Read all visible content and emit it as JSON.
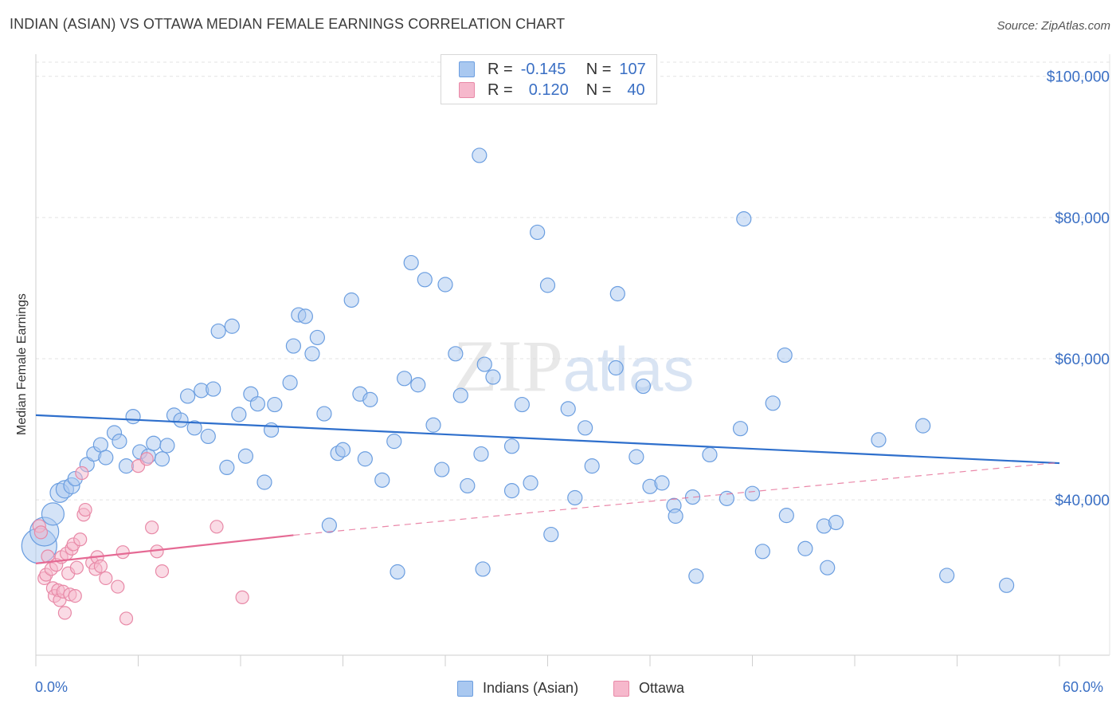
{
  "title": "INDIAN (ASIAN) VS OTTAWA MEDIAN FEMALE EARNINGS CORRELATION CHART",
  "source": "Source: ZipAtlas.com",
  "watermark": "ZIPatlas",
  "legend_top": {
    "rows": [
      {
        "r_label": "R =",
        "r_value": "-0.145",
        "n_label": "N =",
        "n_value": "107",
        "color": "#a9c8f0",
        "border": "#6b9ee0"
      },
      {
        "r_label": "R =",
        "r_value": "0.120",
        "n_label": "N =",
        "n_value": "40",
        "color": "#f6b8cc",
        "border": "#e889a7"
      }
    ]
  },
  "legend_bottom": {
    "items": [
      {
        "label": "Indians (Asian)",
        "color": "#a9c8f0",
        "border": "#6b9ee0"
      },
      {
        "label": "Ottawa",
        "color": "#f6b8cc",
        "border": "#e889a7"
      }
    ]
  },
  "chart_data": {
    "type": "scatter",
    "title": "INDIAN (ASIAN) VS OTTAWA MEDIAN FEMALE EARNINGS CORRELATION CHART",
    "xlabel": "",
    "ylabel": "Median Female Earnings",
    "xlim": [
      0,
      60
    ],
    "ylim": [
      18000,
      102000
    ],
    "x_tick_labels": [
      "0.0%",
      "60.0%"
    ],
    "y_ticks": [
      {
        "value": 40000,
        "label": "$40,000"
      },
      {
        "value": 60000,
        "label": "$60,000"
      },
      {
        "value": 80000,
        "label": "$80,000"
      },
      {
        "value": 100000,
        "label": "$100,000"
      }
    ],
    "series": [
      {
        "name": "Indians (Asian)",
        "color": "#a9c8f0",
        "stroke": "#6b9ee0",
        "trend": {
          "x": [
            0,
            60
          ],
          "y": [
            52000,
            45200
          ],
          "color": "#2e6fcc"
        },
        "points": [
          [
            0.2,
            33500,
            22
          ],
          [
            0.5,
            35500,
            18
          ],
          [
            1.0,
            38000,
            14
          ],
          [
            1.4,
            41000,
            12
          ],
          [
            1.7,
            41500,
            11
          ],
          [
            2.1,
            42000,
            10
          ],
          [
            2.3,
            43000,
            9
          ],
          [
            3.0,
            45000,
            9
          ],
          [
            3.4,
            46500,
            9
          ],
          [
            3.8,
            47800,
            9
          ],
          [
            4.1,
            46000,
            9
          ],
          [
            4.6,
            49500,
            9
          ],
          [
            4.9,
            48300,
            9
          ],
          [
            5.3,
            44800,
            9
          ],
          [
            5.7,
            51800,
            9
          ],
          [
            6.1,
            46800,
            9
          ],
          [
            6.6,
            46200,
            9
          ],
          [
            6.9,
            48000,
            9
          ],
          [
            7.4,
            45800,
            9
          ],
          [
            7.7,
            47700,
            9
          ],
          [
            8.1,
            52000,
            9
          ],
          [
            8.5,
            51300,
            9
          ],
          [
            8.9,
            54700,
            9
          ],
          [
            9.3,
            50200,
            9
          ],
          [
            9.7,
            55500,
            9
          ],
          [
            10.1,
            49000,
            9
          ],
          [
            10.4,
            55700,
            9
          ],
          [
            10.7,
            63900,
            9
          ],
          [
            11.2,
            44600,
            9
          ],
          [
            11.5,
            64600,
            9
          ],
          [
            11.9,
            52100,
            9
          ],
          [
            12.3,
            46200,
            9
          ],
          [
            12.6,
            55000,
            9
          ],
          [
            13.0,
            53600,
            9
          ],
          [
            13.4,
            42500,
            9
          ],
          [
            13.8,
            49900,
            9
          ],
          [
            14.0,
            53500,
            9
          ],
          [
            14.9,
            56600,
            9
          ],
          [
            15.1,
            61800,
            9
          ],
          [
            15.4,
            66200,
            9
          ],
          [
            15.8,
            66000,
            9
          ],
          [
            16.2,
            60700,
            9
          ],
          [
            16.5,
            63000,
            9
          ],
          [
            16.9,
            52200,
            9
          ],
          [
            17.2,
            36400,
            9
          ],
          [
            17.7,
            46600,
            9
          ],
          [
            18.0,
            47100,
            9
          ],
          [
            18.5,
            68300,
            9
          ],
          [
            19.0,
            55000,
            9
          ],
          [
            19.3,
            45800,
            9
          ],
          [
            19.6,
            54200,
            9
          ],
          [
            20.3,
            42800,
            9
          ],
          [
            21.0,
            48300,
            9
          ],
          [
            21.2,
            29800,
            9
          ],
          [
            21.6,
            57200,
            9
          ],
          [
            22.0,
            73600,
            9
          ],
          [
            22.4,
            56300,
            9
          ],
          [
            22.8,
            71200,
            9
          ],
          [
            23.3,
            50600,
            9
          ],
          [
            23.8,
            44300,
            9
          ],
          [
            24.0,
            70500,
            9
          ],
          [
            24.6,
            60700,
            9
          ],
          [
            24.9,
            54800,
            9
          ],
          [
            25.3,
            42000,
            9
          ],
          [
            26.0,
            88800,
            9
          ],
          [
            26.1,
            46500,
            9
          ],
          [
            26.3,
            59200,
            9
          ],
          [
            26.2,
            30200,
            9
          ],
          [
            26.8,
            57400,
            9
          ],
          [
            27.9,
            41300,
            9
          ],
          [
            27.9,
            47600,
            9
          ],
          [
            28.5,
            53500,
            9
          ],
          [
            29.0,
            42400,
            9
          ],
          [
            29.4,
            77900,
            9
          ],
          [
            30.0,
            70400,
            9
          ],
          [
            30.2,
            35100,
            9
          ],
          [
            31.2,
            52900,
            9
          ],
          [
            31.6,
            40300,
            9
          ],
          [
            32.2,
            50200,
            9
          ],
          [
            32.6,
            44800,
            9
          ],
          [
            34.0,
            58700,
            9
          ],
          [
            34.1,
            69200,
            9
          ],
          [
            35.2,
            46100,
            9
          ],
          [
            35.6,
            56100,
            9
          ],
          [
            36.0,
            41900,
            9
          ],
          [
            36.7,
            42400,
            9
          ],
          [
            37.4,
            39200,
            9
          ],
          [
            37.5,
            37700,
            9
          ],
          [
            38.5,
            40400,
            9
          ],
          [
            38.7,
            29200,
            9
          ],
          [
            39.5,
            46400,
            9
          ],
          [
            40.5,
            40200,
            9
          ],
          [
            41.3,
            50100,
            9
          ],
          [
            41.5,
            79800,
            9
          ],
          [
            42.0,
            40900,
            9
          ],
          [
            42.6,
            32700,
            9
          ],
          [
            43.2,
            53700,
            9
          ],
          [
            43.9,
            60500,
            9
          ],
          [
            44.0,
            37800,
            9
          ],
          [
            45.1,
            33100,
            9
          ],
          [
            46.2,
            36300,
            9
          ],
          [
            46.4,
            30400,
            9
          ],
          [
            46.9,
            36800,
            9
          ],
          [
            49.4,
            48500,
            9
          ],
          [
            52.0,
            50500,
            9
          ],
          [
            53.4,
            29300,
            9
          ],
          [
            56.9,
            27900,
            9
          ]
        ]
      },
      {
        "name": "Ottawa",
        "color": "#f6b8cc",
        "stroke": "#e889a7",
        "trend": {
          "x": [
            0,
            15.1
          ],
          "y": [
            31000,
            35000
          ],
          "color": "#e56a94"
        },
        "trend_ext": {
          "x": [
            15.1,
            60
          ],
          "y": [
            35000,
            45300
          ]
        },
        "points": [
          [
            0.2,
            36300,
            8
          ],
          [
            0.3,
            35400,
            8
          ],
          [
            0.5,
            28900,
            8
          ],
          [
            0.6,
            29400,
            8
          ],
          [
            0.7,
            32000,
            8
          ],
          [
            0.9,
            30200,
            8
          ],
          [
            1.0,
            27500,
            8
          ],
          [
            1.1,
            26400,
            8
          ],
          [
            1.2,
            30800,
            8
          ],
          [
            1.3,
            27200,
            8
          ],
          [
            1.4,
            25800,
            8
          ],
          [
            1.5,
            31900,
            8
          ],
          [
            1.6,
            27000,
            8
          ],
          [
            1.7,
            24000,
            8
          ],
          [
            1.8,
            32400,
            8
          ],
          [
            1.9,
            29600,
            8
          ],
          [
            2.0,
            26600,
            8
          ],
          [
            2.1,
            33100,
            8
          ],
          [
            2.2,
            33700,
            8
          ],
          [
            2.3,
            26400,
            8
          ],
          [
            2.4,
            30400,
            8
          ],
          [
            2.6,
            34400,
            8
          ],
          [
            2.7,
            43800,
            8
          ],
          [
            2.8,
            37900,
            8
          ],
          [
            2.9,
            38600,
            8
          ],
          [
            3.3,
            31100,
            8
          ],
          [
            3.5,
            30200,
            8
          ],
          [
            3.6,
            31900,
            8
          ],
          [
            3.8,
            30600,
            8
          ],
          [
            4.1,
            28900,
            8
          ],
          [
            4.8,
            27700,
            8
          ],
          [
            5.1,
            32600,
            8
          ],
          [
            5.3,
            23200,
            8
          ],
          [
            6.0,
            44800,
            8
          ],
          [
            6.5,
            45800,
            8
          ],
          [
            6.8,
            36100,
            8
          ],
          [
            7.1,
            32700,
            8
          ],
          [
            7.4,
            29900,
            8
          ],
          [
            10.6,
            36200,
            8
          ],
          [
            12.1,
            26200,
            8
          ]
        ]
      }
    ]
  }
}
